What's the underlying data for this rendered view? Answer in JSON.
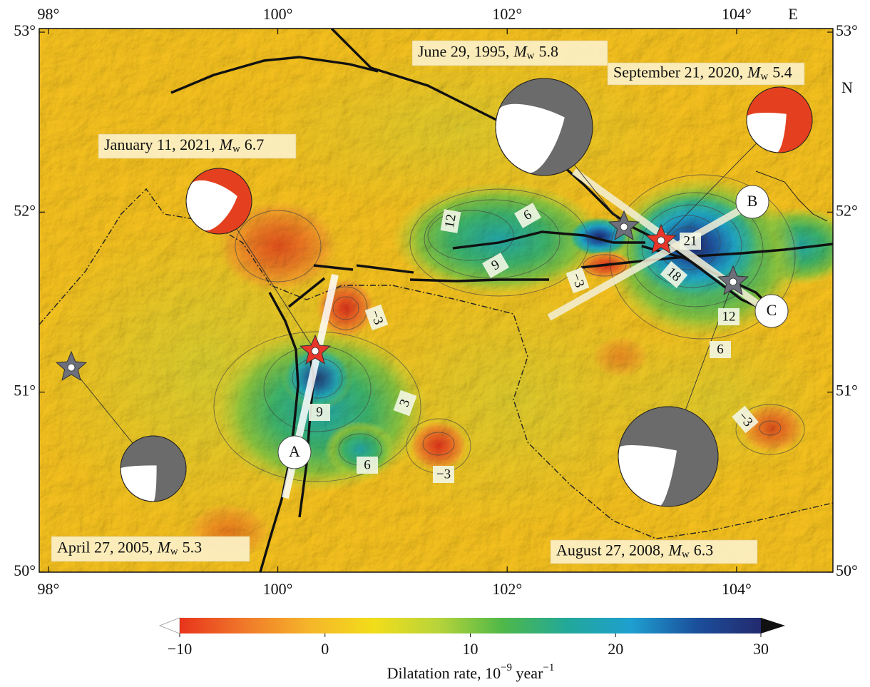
{
  "map": {
    "xlim": [
      97.92,
      104.84
    ],
    "ylim": [
      50,
      53.02
    ],
    "lon_ticks": [
      {
        "value": 98,
        "label": "98°"
      },
      {
        "value": 100,
        "label": "100°"
      },
      {
        "value": 102,
        "label": "102°"
      },
      {
        "value": 104,
        "label": "104°"
      }
    ],
    "lat_ticks": [
      {
        "value": 50,
        "label": "50°"
      },
      {
        "value": 51,
        "label": "51°"
      },
      {
        "value": 52,
        "label": "52°"
      },
      {
        "value": 53,
        "label": "53°"
      }
    ],
    "east_label": "E",
    "north_label": "N",
    "events": [
      {
        "date": "June 29, 1995,",
        "symbol": "M",
        "subscript": "w",
        "magnitude": "5.8"
      },
      {
        "date": "September 21, 2020,",
        "symbol": "M",
        "subscript": "w",
        "magnitude": "5.4"
      },
      {
        "date": "January 11, 2021,",
        "symbol": "M",
        "subscript": "w",
        "magnitude": "6.7"
      },
      {
        "date": "April 27, 2005,",
        "symbol": "M",
        "subscript": "w",
        "magnitude": "5.3"
      },
      {
        "date": "August 27, 2008,",
        "symbol": "M",
        "subscript": "w",
        "magnitude": "6.3"
      }
    ],
    "profile_points": [
      "A",
      "B",
      "C"
    ],
    "contour_labels": [
      "12",
      "6",
      "9",
      "21",
      "18",
      "−3",
      "12",
      "6",
      "9",
      "3",
      "6",
      "−3",
      "−3",
      "−3"
    ]
  },
  "colorbar": {
    "lim": [
      -10,
      30
    ],
    "ticks": [
      {
        "value": -10,
        "label": "−10"
      },
      0,
      10,
      20,
      30
    ],
    "colors": [
      "#e8341c",
      "#f0782a",
      "#f5b52a",
      "#f2dd1a",
      "#b8d43a",
      "#4fb848",
      "#22a89a",
      "#1e9fd0",
      "#1b4f9c",
      "#232a6e"
    ],
    "title": "Dilatation rate, 10",
    "title_exp": "−9",
    "title_unit": " year",
    "title_unit_exp": "−1"
  }
}
